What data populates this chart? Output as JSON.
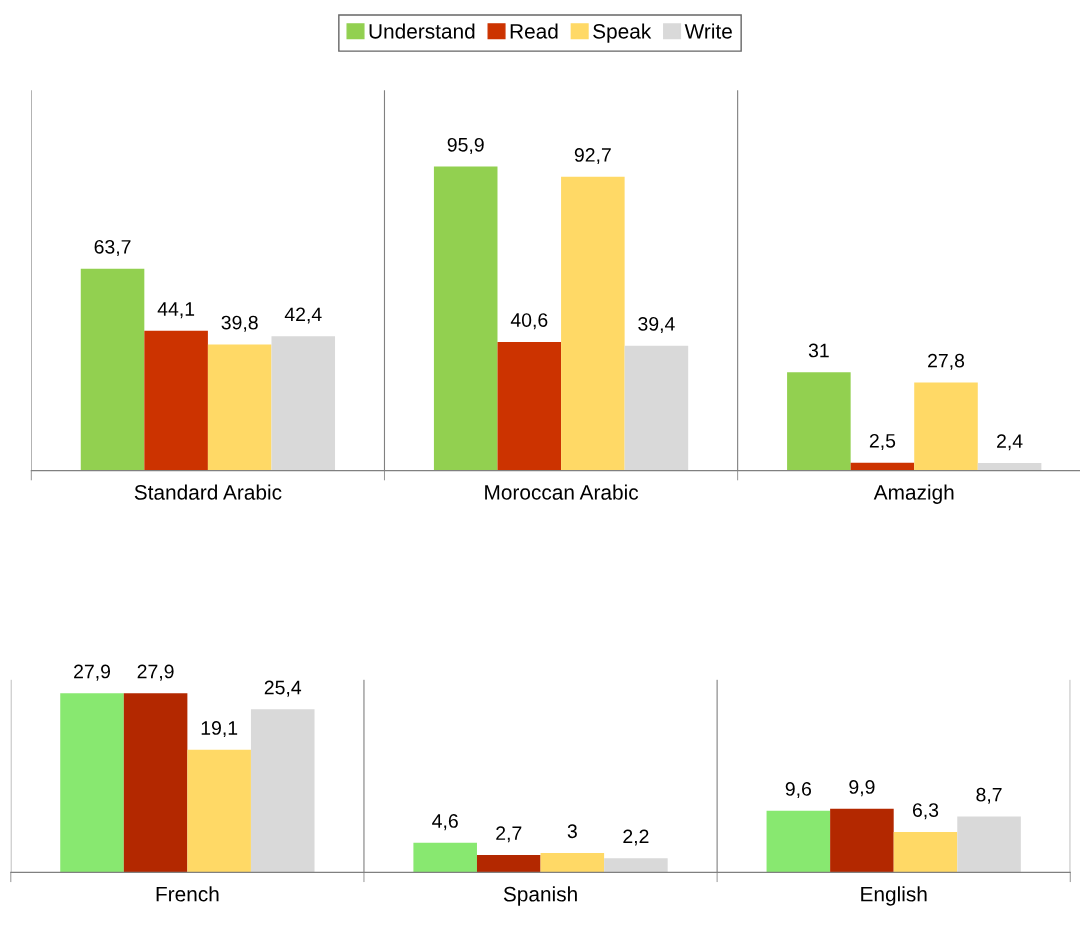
{
  "chart_data": [
    {
      "type": "bar",
      "categories": [
        "Standard Arabic",
        "Moroccan Arabic",
        "Amazigh"
      ],
      "ylim": [
        0,
        120
      ],
      "grid": "x",
      "legend": "top",
      "tick_labels": "x",
      "series": [
        {
          "name": "Understand",
          "color": "#92d050",
          "values": [
            63.7,
            95.9,
            31
          ],
          "value_labels": [
            "63,7",
            "95,9",
            "31"
          ]
        },
        {
          "name": "Read",
          "color": "#cc3300",
          "values": [
            44.1,
            40.6,
            2.5
          ],
          "value_labels": [
            "44,1",
            "40,6",
            "2,5"
          ]
        },
        {
          "name": "Speak",
          "color": "#ffd966",
          "values": [
            39.8,
            92.7,
            27.8
          ],
          "value_labels": [
            "39,8",
            "92,7",
            "27,8"
          ]
        },
        {
          "name": "Write",
          "color": "#d9d9d9",
          "values": [
            42.4,
            39.4,
            2.4
          ],
          "value_labels": [
            "42,4",
            "39,4",
            "2,4"
          ]
        }
      ]
    },
    {
      "type": "bar",
      "categories": [
        "French",
        "Spanish",
        "English"
      ],
      "ylim": [
        0,
        30
      ],
      "grid": "x",
      "tick_labels": "x",
      "series": [
        {
          "color": "#88e870",
          "values": [
            27.9,
            4.6,
            9.6
          ],
          "value_labels": [
            "27,9",
            "4,6",
            "9,6"
          ]
        },
        {
          "color": "#b32800",
          "values": [
            27.9,
            2.7,
            9.9
          ],
          "value_labels": [
            "27,9",
            "2,7",
            "9,9"
          ]
        },
        {
          "color": "#ffd966",
          "values": [
            19.1,
            3,
            6.3
          ],
          "value_labels": [
            "19,1",
            "3",
            "6,3"
          ]
        },
        {
          "color": "#d9d9d9",
          "values": [
            25.4,
            2.2,
            8.7
          ],
          "value_labels": [
            "25,4",
            "2,2",
            "8,7"
          ]
        }
      ]
    }
  ]
}
